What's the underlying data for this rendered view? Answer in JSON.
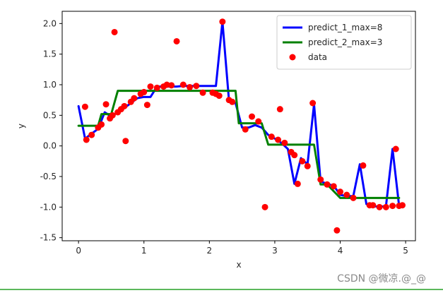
{
  "chart_data": {
    "type": "scatter",
    "xlabel": "x",
    "ylabel": "y",
    "xlim": [
      -0.25,
      5.15
    ],
    "ylim": [
      -1.55,
      2.2
    ],
    "xticks": [
      0,
      1,
      2,
      3,
      4,
      5
    ],
    "yticks": [
      -1.5,
      -1.0,
      -0.5,
      0.0,
      0.5,
      1.0,
      1.5,
      2.0
    ],
    "grid": false,
    "legend_position": "top-right",
    "series": [
      {
        "name": "predict_1_max=8",
        "kind": "line",
        "color": "#0000ff",
        "x": [
          0.0,
          0.1,
          0.2,
          0.3,
          0.4,
          0.5,
          0.6,
          0.7,
          0.8,
          0.9,
          1.0,
          1.1,
          1.2,
          1.3,
          1.4,
          1.5,
          1.6,
          1.7,
          1.8,
          1.9,
          2.0,
          2.1,
          2.2,
          2.3,
          2.4,
          2.5,
          2.6,
          2.7,
          2.8,
          2.9,
          3.0,
          3.1,
          3.2,
          3.3,
          3.4,
          3.5,
          3.6,
          3.7,
          3.8,
          3.9,
          4.0,
          4.1,
          4.2,
          4.3,
          4.4,
          4.5,
          4.6,
          4.7,
          4.8,
          4.9
        ],
        "y": [
          0.65,
          0.12,
          0.2,
          0.28,
          0.55,
          0.48,
          0.55,
          0.62,
          0.7,
          0.78,
          0.8,
          0.8,
          0.97,
          0.97,
          0.97,
          0.97,
          0.98,
          0.98,
          0.98,
          0.98,
          0.98,
          0.98,
          2.03,
          0.74,
          0.7,
          0.3,
          0.3,
          0.34,
          0.3,
          0.18,
          0.12,
          0.05,
          -0.05,
          -0.62,
          -0.2,
          -0.3,
          0.68,
          -0.58,
          -0.62,
          -0.65,
          -0.8,
          -0.82,
          -0.82,
          -0.3,
          -0.95,
          -0.98,
          -1.0,
          -0.98,
          -0.05,
          -0.98
        ]
      },
      {
        "name": "predict_2_max=3",
        "kind": "line",
        "color": "#008000",
        "x": [
          0.0,
          0.3,
          0.35,
          0.5,
          0.6,
          1.0,
          2.0,
          2.4,
          2.45,
          2.8,
          2.9,
          3.0,
          3.5,
          3.6,
          3.7,
          3.8,
          4.0,
          4.4,
          4.5,
          4.9
        ],
        "y": [
          0.33,
          0.33,
          0.52,
          0.52,
          0.9,
          0.9,
          0.9,
          0.9,
          0.37,
          0.37,
          0.02,
          0.02,
          0.02,
          0.02,
          -0.63,
          -0.63,
          -0.85,
          -0.85,
          -0.85,
          -0.85
        ]
      },
      {
        "name": "data",
        "kind": "scatter",
        "color": "#ff0000",
        "x": [
          0.1,
          0.12,
          0.2,
          0.3,
          0.35,
          0.42,
          0.48,
          0.52,
          0.55,
          0.6,
          0.65,
          0.7,
          0.72,
          0.8,
          0.85,
          0.95,
          1.0,
          1.05,
          1.1,
          1.2,
          1.3,
          1.35,
          1.42,
          1.5,
          1.6,
          1.7,
          1.8,
          1.9,
          2.05,
          2.1,
          2.15,
          2.2,
          2.3,
          2.35,
          2.55,
          2.65,
          2.75,
          2.85,
          2.95,
          3.05,
          3.08,
          3.15,
          3.25,
          3.3,
          3.35,
          3.42,
          3.5,
          3.58,
          3.7,
          3.8,
          3.9,
          3.95,
          4.0,
          4.1,
          4.2,
          4.35,
          4.45,
          4.5,
          4.6,
          4.7,
          4.8,
          4.85,
          4.9,
          4.95
        ],
        "y": [
          0.64,
          0.1,
          0.18,
          0.3,
          0.35,
          0.68,
          0.45,
          0.5,
          1.86,
          0.55,
          0.6,
          0.65,
          0.08,
          0.72,
          0.78,
          0.85,
          0.88,
          0.67,
          0.97,
          0.95,
          0.97,
          1.0,
          0.99,
          1.71,
          1.0,
          0.96,
          0.98,
          0.87,
          0.87,
          0.85,
          0.82,
          2.03,
          0.75,
          0.72,
          0.27,
          0.48,
          0.4,
          -1.0,
          0.15,
          0.1,
          0.6,
          0.05,
          -0.1,
          -0.15,
          -0.62,
          -0.25,
          -0.33,
          0.7,
          -0.55,
          -0.63,
          -0.66,
          -1.38,
          -0.75,
          -0.8,
          -0.85,
          -0.32,
          -0.97,
          -0.97,
          -1.0,
          -1.0,
          -0.98,
          -0.05,
          -0.98,
          -0.97
        ]
      }
    ]
  },
  "watermark": "CSDN @微凉.@_@",
  "colors": {
    "accent_line": "#5cb85c"
  }
}
